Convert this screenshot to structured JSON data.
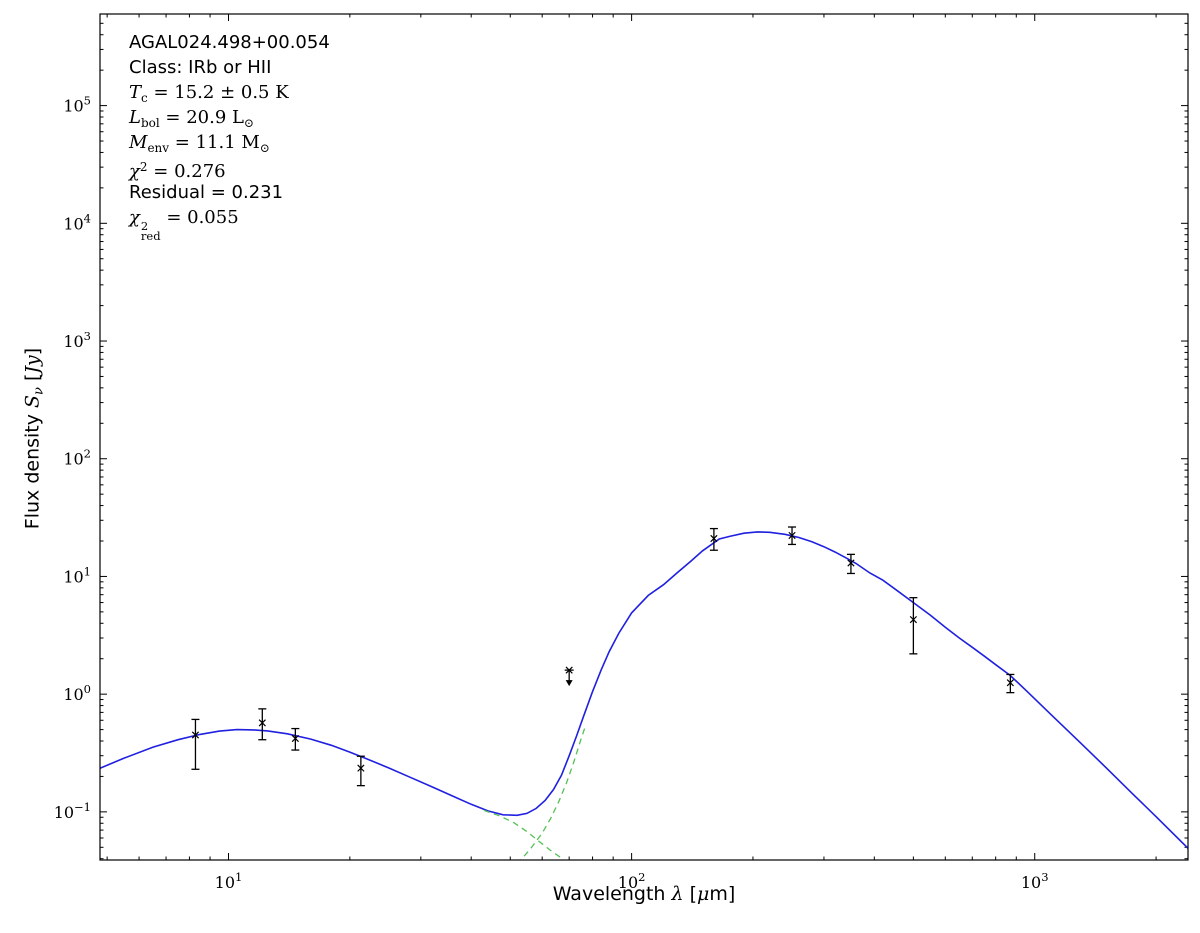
{
  "annotation": {
    "source": "AGAL024.498+00.054",
    "class_line": "Class: IRb or HII",
    "temp": {
      "sym": "T",
      "sub": "c",
      "rest": " = 15.2 ± 0.5 K"
    },
    "lbol": {
      "sym": "L",
      "sub": "bol",
      "mid": " = 20.9 ",
      "unit": "L",
      "unit_sub": "⊙"
    },
    "menv": {
      "sym": "M",
      "sub": "env",
      "mid": " = 11.1 ",
      "unit": "M",
      "unit_sub": "⊙"
    },
    "chi2": {
      "sym": "χ",
      "sup": "2",
      "rest": " = 0.276"
    },
    "residual": "Residual = 0.231",
    "chi2red": {
      "sym": "χ",
      "sup": "2",
      "sub": "red",
      "rest": " = 0.055"
    }
  },
  "labels": {
    "x": {
      "p1": "Wavelength ",
      "p2": "λ",
      "p3": " [",
      "p4": "μ",
      "p5": "m]"
    },
    "y": {
      "p1": "Flux density ",
      "p2": "S",
      "p3": "ν",
      "p4": " [",
      "p5": "Jy",
      "p6": "]"
    }
  },
  "chart_data": {
    "type": "line",
    "title": "",
    "xlabel": "Wavelength λ [μm]",
    "ylabel": "Flux density Sν [Jy]",
    "x_scale": "log",
    "y_scale": "log",
    "xlim": [
      4.8,
      2400
    ],
    "ylim": [
      0.039,
      600000
    ],
    "x_tick_exponents": [
      1,
      2,
      3
    ],
    "y_tick_exponents": [
      -1,
      0,
      1,
      2,
      3,
      4,
      5
    ],
    "grid": false,
    "legend": "none",
    "colors": {
      "model": "#2020e0",
      "components": "#55c055",
      "data": "#000000",
      "frame": "#000000"
    },
    "series": [
      {
        "name": "model-total",
        "color": "model",
        "dash": false,
        "points": [
          [
            4.8,
            0.235
          ],
          [
            5.5,
            0.285
          ],
          [
            6.5,
            0.355
          ],
          [
            7.5,
            0.41
          ],
          [
            8.5,
            0.455
          ],
          [
            9.5,
            0.485
          ],
          [
            10.5,
            0.5
          ],
          [
            11.5,
            0.497
          ],
          [
            12.5,
            0.487
          ],
          [
            14,
            0.46
          ],
          [
            16,
            0.415
          ],
          [
            18,
            0.368
          ],
          [
            20,
            0.322
          ],
          [
            22,
            0.283
          ],
          [
            25,
            0.236
          ],
          [
            28,
            0.199
          ],
          [
            32,
            0.163
          ],
          [
            36,
            0.136
          ],
          [
            40,
            0.116
          ],
          [
            44,
            0.102
          ],
          [
            48,
            0.0945
          ],
          [
            52,
            0.0935
          ],
          [
            55,
            0.097
          ],
          [
            58,
            0.107
          ],
          [
            61,
            0.125
          ],
          [
            64,
            0.155
          ],
          [
            67,
            0.205
          ],
          [
            70,
            0.3
          ],
          [
            73,
            0.44
          ],
          [
            76,
            0.65
          ],
          [
            80,
            1.05
          ],
          [
            84,
            1.6
          ],
          [
            88,
            2.3
          ],
          [
            93,
            3.3
          ],
          [
            100,
            4.9
          ],
          [
            110,
            6.9
          ],
          [
            120,
            8.5
          ],
          [
            130,
            10.8
          ],
          [
            140,
            13.4
          ],
          [
            150,
            16.5
          ],
          [
            165,
            20.8
          ],
          [
            175,
            21.9
          ],
          [
            190,
            23.3
          ],
          [
            205,
            23.9
          ],
          [
            220,
            23.7
          ],
          [
            240,
            22.8
          ],
          [
            260,
            21.4
          ],
          [
            280,
            19.7
          ],
          [
            300,
            17.9
          ],
          [
            320,
            16.1
          ],
          [
            340,
            14.4
          ],
          [
            360,
            12.9
          ],
          [
            390,
            10.7
          ],
          [
            420,
            9.3
          ],
          [
            460,
            7.4
          ],
          [
            500,
            6.0
          ],
          [
            550,
            4.7
          ],
          [
            600,
            3.7
          ],
          [
            650,
            3.0
          ],
          [
            700,
            2.5
          ],
          [
            750,
            2.1
          ],
          [
            800,
            1.78
          ],
          [
            870,
            1.44
          ],
          [
            950,
            1.08
          ],
          [
            1100,
            0.666
          ],
          [
            1300,
            0.384
          ],
          [
            1500,
            0.239
          ],
          [
            1750,
            0.142
          ],
          [
            2000,
            0.091
          ],
          [
            2400,
            0.049
          ]
        ]
      },
      {
        "name": "warm-component",
        "color": "components",
        "dash": true,
        "points": [
          [
            43,
            0.103
          ],
          [
            47,
            0.0925
          ],
          [
            51,
            0.081
          ],
          [
            55,
            0.068
          ],
          [
            59,
            0.056
          ],
          [
            63,
            0.047
          ],
          [
            67,
            0.0405
          ],
          [
            70,
            0.036
          ]
        ]
      },
      {
        "name": "cold-component",
        "color": "components",
        "dash": true,
        "points": [
          [
            52,
            0.036
          ],
          [
            56,
            0.048
          ],
          [
            60,
            0.066
          ],
          [
            63,
            0.088
          ],
          [
            66,
            0.123
          ],
          [
            69,
            0.178
          ],
          [
            72,
            0.27
          ],
          [
            75,
            0.42
          ],
          [
            77,
            0.55
          ]
        ]
      }
    ],
    "data_points": [
      {
        "x": 8.28,
        "y": 0.45,
        "yplus": 0.16,
        "yminus": 0.22
      },
      {
        "x": 12.13,
        "y": 0.57,
        "yplus": 0.18,
        "yminus": 0.16
      },
      {
        "x": 14.65,
        "y": 0.42,
        "yplus": 0.09,
        "yminus": 0.085
      },
      {
        "x": 21.3,
        "y": 0.235,
        "yplus": 0.062,
        "yminus": 0.068
      },
      {
        "x": 70,
        "y": 1.6,
        "upper_limit": true
      },
      {
        "x": 160,
        "y": 21.0,
        "yplus": 4.5,
        "yminus": 4.3
      },
      {
        "x": 250,
        "y": 22.3,
        "yplus": 4.0,
        "yminus": 3.6
      },
      {
        "x": 350,
        "y": 13.0,
        "yplus": 2.4,
        "yminus": 2.4
      },
      {
        "x": 500,
        "y": 4.3,
        "yplus": 2.3,
        "yminus": 2.1
      },
      {
        "x": 870,
        "y": 1.25,
        "yplus": 0.22,
        "yminus": 0.22
      }
    ]
  }
}
